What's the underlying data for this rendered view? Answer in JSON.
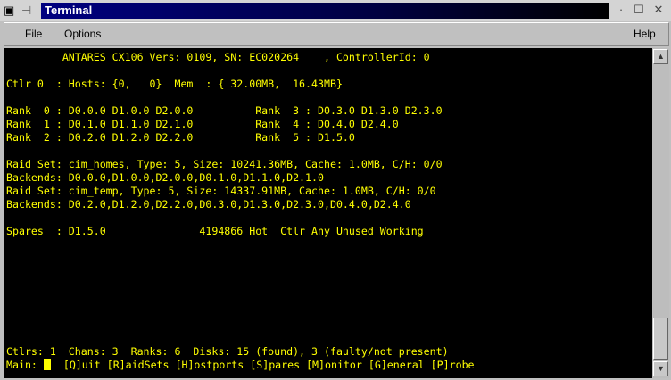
{
  "window": {
    "title": "Terminal"
  },
  "menu": {
    "file": "File",
    "options": "Options",
    "help": "Help"
  },
  "terminal": {
    "lines": [
      "         ANTARES CX106 Vers: 0109, SN: EC020264    , ControllerId: 0",
      "",
      "Ctlr 0  : Hosts: {0,   0}  Mem  : { 32.00MB,  16.43MB}",
      "",
      "Rank  0 : D0.0.0 D1.0.0 D2.0.0          Rank  3 : D0.3.0 D1.3.0 D2.3.0",
      "Rank  1 : D0.1.0 D1.1.0 D2.1.0          Rank  4 : D0.4.0 D2.4.0",
      "Rank  2 : D0.2.0 D1.2.0 D2.2.0          Rank  5 : D1.5.0",
      "",
      "Raid Set: cim_homes, Type: 5, Size: 10241.36MB, Cache: 1.0MB, C/H: 0/0",
      "Backends: D0.0.0,D1.0.0,D2.0.0,D0.1.0,D1.1.0,D2.1.0",
      "Raid Set: cim_temp, Type: 5, Size: 14337.91MB, Cache: 1.0MB, C/H: 0/0",
      "Backends: D0.2.0,D1.2.0,D2.2.0,D0.3.0,D1.3.0,D2.3.0,D0.4.0,D2.4.0",
      "",
      "Spares  : D1.5.0               4194866 Hot  Ctlr Any Unused Working",
      "",
      "",
      "",
      "",
      "",
      "",
      "",
      "",
      "Ctlrs: 1  Chans: 3  Ranks: 6  Disks: 15 (found), 3 (faulty/not present)"
    ],
    "prompt": "Main: ",
    "commands": "  [Q]uit [R]aidSets [H]ostports [S]pares [M]onitor [G]eneral [P]robe"
  },
  "colors": {
    "fg": "#ffff00",
    "bg": "#000000",
    "titlebar": "#000080"
  }
}
